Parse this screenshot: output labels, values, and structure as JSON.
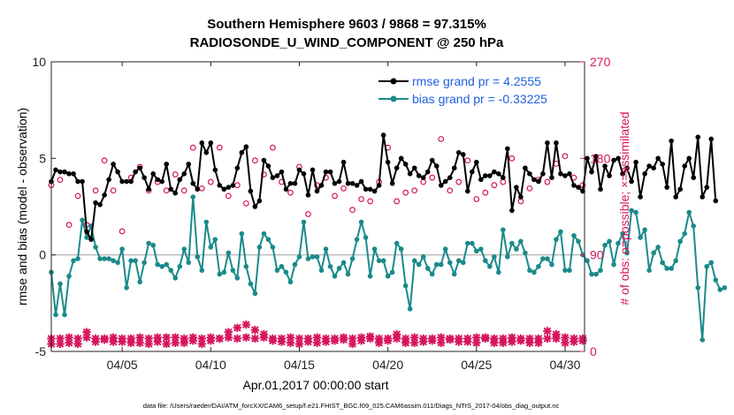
{
  "chart_data": {
    "type": "line",
    "title_line1": "Southern Hemisphere 9603 / 9868 = 97.315%",
    "title_line2": "RADIOSONDE_U_WIND_COMPONENT @ 250 hPa",
    "xlabel": "Apr.01,2017 00:00:00 start",
    "ylabel_left": "rmse and bias (model - observation)",
    "ylabel_right": "# of obs: o=possible; ×=assimilated",
    "footer": "data file: /Users/raeder/DAI/ATM_forcXX/CAM6_setup/f.e21.FHIST_BGC.f09_025.CAM6assim.011/Diags_NTrS_2017-04/obs_diag_output.nc",
    "ylim_left": [
      -5,
      10
    ],
    "ylim_right": [
      0,
      270
    ],
    "xlim_days": [
      1.0,
      31.1
    ],
    "x_ticks": [
      {
        "day": 5,
        "label": "04/05"
      },
      {
        "day": 10,
        "label": "04/10"
      },
      {
        "day": 15,
        "label": "04/15"
      },
      {
        "day": 20,
        "label": "04/20"
      },
      {
        "day": 25,
        "label": "04/25"
      },
      {
        "day": 30,
        "label": "04/30"
      }
    ],
    "y_ticks_left": [
      {
        "value": -5,
        "label": "-5"
      },
      {
        "value": 0,
        "label": "0"
      },
      {
        "value": 5,
        "label": "5"
      },
      {
        "value": 10,
        "label": "10"
      }
    ],
    "y_ticks_right": [
      {
        "value": 0,
        "label": "0"
      },
      {
        "value": 90,
        "label": "90"
      },
      {
        "value": 180,
        "label": "180"
      },
      {
        "value": 270,
        "label": "270"
      }
    ],
    "colors": {
      "rmse": "#000000",
      "bias": "#1a8a8a",
      "counts": "#d6155c",
      "zero_line": "#bbbbbb",
      "legend_text": "#1f5fe0"
    },
    "legend": [
      {
        "name": "rmse grand pr = 4.2555",
        "series": "rmse"
      },
      {
        "name": "bias grand pr = -0.33225",
        "series": "bias"
      }
    ],
    "series": [
      {
        "name": "rmse",
        "x_start_day": 1.0,
        "x_step_day": 0.25,
        "values": [
          3.8,
          4.4,
          4.3,
          4.3,
          4.2,
          4.2,
          3.8,
          3.8,
          1.2,
          0.8,
          2.7,
          2.6,
          3.1,
          3.9,
          4.7,
          4.3,
          3.8,
          3.8,
          3.8,
          4.3,
          4.5,
          4.0,
          3.4,
          4.2,
          3.9,
          3.8,
          4.7,
          3.4,
          3.2,
          3.9,
          4.2,
          4.7,
          3.7,
          3.4,
          5.8,
          5.3,
          5.8,
          4.4,
          3.6,
          3.4,
          3.5,
          3.6,
          4.5,
          5.3,
          5.6,
          3.3,
          2.5,
          2.8,
          4.9,
          4.6,
          4.0,
          4.1,
          4.3,
          3.4,
          3.7,
          3.7,
          4.4,
          4.2,
          3.1,
          4.4,
          3.3,
          3.6,
          4.3,
          4.3,
          3.7,
          3.8,
          4.8,
          3.7,
          3.7,
          3.6,
          3.8,
          3.4,
          3.4,
          3.3,
          3.6,
          6.2,
          4.8,
          3.7,
          4.5,
          5.0,
          4.7,
          4.2,
          4.5,
          4.1,
          4.0,
          4.3,
          4.9,
          4.6,
          3.6,
          3.8,
          4.0,
          4.5,
          5.3,
          5.2,
          3.3,
          4.3,
          4.8,
          3.9,
          4.1,
          4.1,
          4.3,
          4.2,
          4.0,
          5.5,
          2.3,
          3.5,
          3.0,
          4.5,
          4.2,
          3.9,
          3.8,
          4.2,
          5.8,
          4.0,
          5.8,
          4.2,
          4.1,
          4.2,
          3.6,
          3.5,
          3.3,
          5.0,
          4.3,
          5.1,
          3.4,
          4.6,
          4.1,
          4.9,
          5.0,
          4.2,
          4.5,
          3.8,
          4.8,
          3.0,
          4.2,
          4.6,
          4.5,
          5.0,
          4.7,
          3.5,
          5.9,
          3.0,
          3.4,
          4.6,
          5.0,
          4.0,
          6.1,
          3.0,
          3.5,
          6.0,
          2.8
        ]
      },
      {
        "name": "bias",
        "x_start_day": 1.0,
        "x_step_day": 0.25,
        "values": [
          -0.9,
          -3.1,
          -1.5,
          -3.1,
          -1.1,
          -0.3,
          -0.2,
          1.8,
          0.9,
          1.5,
          0.4,
          -0.2,
          -0.2,
          -0.2,
          -0.3,
          -0.4,
          0.3,
          -1.7,
          -0.3,
          -0.3,
          -1.4,
          -0.4,
          0.6,
          0.5,
          -0.5,
          -0.6,
          -0.5,
          -0.8,
          -1.2,
          -0.6,
          0.3,
          -0.4,
          3.0,
          -0.1,
          -0.8,
          1.7,
          0.4,
          0.8,
          -1.0,
          -0.9,
          0.1,
          -0.8,
          -1.2,
          1.1,
          -0.6,
          -1.5,
          -2.0,
          0.4,
          1.1,
          0.8,
          0.4,
          -0.8,
          -0.6,
          -0.9,
          -1.4,
          -0.5,
          -0.1,
          1.7,
          -0.2,
          -0.1,
          -0.1,
          -0.8,
          0.3,
          -0.6,
          -1.1,
          -0.7,
          -0.4,
          -1.0,
          -0.2,
          0.8,
          1.7,
          0.9,
          -1.1,
          0.3,
          -0.3,
          -0.3,
          -1.1,
          -0.9,
          0.6,
          0.3,
          -1.6,
          -2.8,
          -0.3,
          -0.5,
          -0.1,
          -0.7,
          -1.0,
          -0.5,
          -0.5,
          0.3,
          -0.4,
          -1.0,
          -0.3,
          -0.4,
          0.6,
          0.6,
          0.2,
          0.3,
          -0.3,
          -0.6,
          -0.1,
          -0.9,
          1.3,
          -0.1,
          0.6,
          0.3,
          0.7,
          0.1,
          -0.8,
          -0.9,
          -0.6,
          -0.2,
          -0.2,
          -0.5,
          0.8,
          1.2,
          -0.8,
          -0.8,
          1.0,
          0.7,
          0.0,
          -0.3,
          -1.0,
          -1.0,
          -0.8,
          0.5,
          0.7,
          -0.5,
          0.6,
          1.1,
          0.1,
          2.3,
          2.2,
          0.9,
          1.3,
          -0.8,
          0.1,
          0.4,
          -0.4,
          -0.7,
          -0.7,
          -0.3,
          0.7,
          1.1,
          2.2,
          1.5,
          -1.7,
          -4.4,
          -0.6,
          -0.4,
          -1.3,
          -1.8,
          -1.7
        ]
      },
      {
        "name": "assimilated",
        "x_start_day": 1.0,
        "x_step_day": 0.5,
        "values": [
          12,
          12,
          13,
          12,
          13,
          12,
          12,
          13,
          12,
          12,
          13,
          12,
          13,
          13,
          13,
          12,
          13,
          12,
          13,
          12,
          13,
          12,
          13,
          12,
          13,
          12,
          12,
          13,
          12,
          12,
          13,
          12,
          12,
          13,
          12,
          13,
          12,
          12,
          12,
          12,
          12,
          13,
          12,
          12,
          13,
          12,
          12,
          12,
          13,
          12,
          12,
          12,
          13,
          12,
          12,
          12,
          12,
          12,
          13,
          12,
          12
        ]
      },
      {
        "name": "possible",
        "x_start_day": 1.0,
        "x_step_day": 0.5,
        "values": [
          155,
          160,
          118,
          145,
          118,
          150,
          178,
          150,
          112,
          162,
          172,
          150,
          158,
          150,
          165,
          150,
          190,
          152,
          158,
          190,
          145,
          155,
          138,
          178,
          165,
          190,
          158,
          148,
          172,
          128,
          155,
          162,
          145,
          152,
          132,
          142,
          140,
          158,
          190,
          140,
          148,
          150,
          158,
          162,
          198,
          150,
          158,
          178,
          142,
          148,
          155,
          158,
          180,
          140,
          152,
          160,
          158,
          175,
          182,
          162,
          155
        ]
      },
      {
        "name": "assimilated_low",
        "x_start_day": 1.0,
        "x_step_day": 0.5,
        "values": [
          7,
          7,
          8,
          7,
          18,
          9,
          11,
          9,
          9,
          8,
          8,
          7,
          9,
          7,
          8,
          8,
          10,
          7,
          10,
          12,
          18,
          22,
          25,
          20,
          16,
          10,
          9,
          8,
          7,
          9,
          8,
          9,
          10,
          11,
          7,
          10,
          14,
          8,
          10,
          16,
          8,
          8,
          9,
          10,
          8,
          11,
          9,
          9,
          8,
          13,
          8,
          8,
          9,
          10,
          8,
          8,
          19,
          16,
          8,
          9,
          10
        ]
      }
    ]
  }
}
